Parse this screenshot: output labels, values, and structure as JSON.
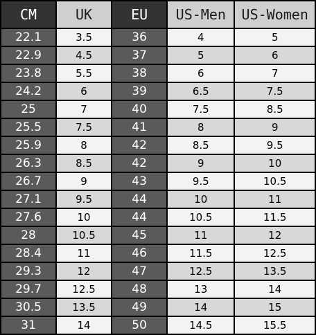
{
  "headers": {
    "cm": "CM",
    "uk": "UK",
    "eu": "EU",
    "us_men": "US-Men",
    "us_women": "US-Women"
  },
  "rows": [
    {
      "cm": "22.1",
      "uk": "3.5",
      "eu": "36",
      "us_men": "4",
      "us_women": "5"
    },
    {
      "cm": "22.9",
      "uk": "4.5",
      "eu": "37",
      "us_men": "5",
      "us_women": "6"
    },
    {
      "cm": "23.8",
      "uk": "5.5",
      "eu": "38",
      "us_men": "6",
      "us_women": "7"
    },
    {
      "cm": "24.2",
      "uk": "6",
      "eu": "39",
      "us_men": "6.5",
      "us_women": "7.5"
    },
    {
      "cm": "25",
      "uk": "7",
      "eu": "40",
      "us_men": "7.5",
      "us_women": "8.5"
    },
    {
      "cm": "25.5",
      "uk": "7.5",
      "eu": "41",
      "us_men": "8",
      "us_women": "9"
    },
    {
      "cm": "25.9",
      "uk": "8",
      "eu": "42",
      "us_men": "8.5",
      "us_women": "9.5"
    },
    {
      "cm": "26.3",
      "uk": "8.5",
      "eu": "42",
      "us_men": "9",
      "us_women": "10"
    },
    {
      "cm": "26.7",
      "uk": "9",
      "eu": "43",
      "us_men": "9.5",
      "us_women": "10.5"
    },
    {
      "cm": "27.1",
      "uk": "9.5",
      "eu": "44",
      "us_men": "10",
      "us_women": "11"
    },
    {
      "cm": "27.6",
      "uk": "10",
      "eu": "44",
      "us_men": "10.5",
      "us_women": "11.5"
    },
    {
      "cm": "28",
      "uk": "10.5",
      "eu": "45",
      "us_men": "11",
      "us_women": "12"
    },
    {
      "cm": "28.4",
      "uk": "11",
      "eu": "46",
      "us_men": "11.5",
      "us_women": "12.5"
    },
    {
      "cm": "29.3",
      "uk": "12",
      "eu": "47",
      "us_men": "12.5",
      "us_women": "13.5"
    },
    {
      "cm": "29.7",
      "uk": "12.5",
      "eu": "48",
      "us_men": "13",
      "us_women": "14"
    },
    {
      "cm": "30.5",
      "uk": "13.5",
      "eu": "49",
      "us_men": "14",
      "us_women": "15"
    },
    {
      "cm": "31",
      "uk": "14",
      "eu": "50",
      "us_men": "14.5",
      "us_women": "15.5"
    }
  ],
  "colors": {
    "header_dark": "#333333",
    "header_light": "#cfcfcf",
    "cell_dark": "#5a5a5a",
    "cell_light_odd": "#f3f3f3",
    "cell_light_even": "#d8d8d8",
    "border": "#000000"
  }
}
